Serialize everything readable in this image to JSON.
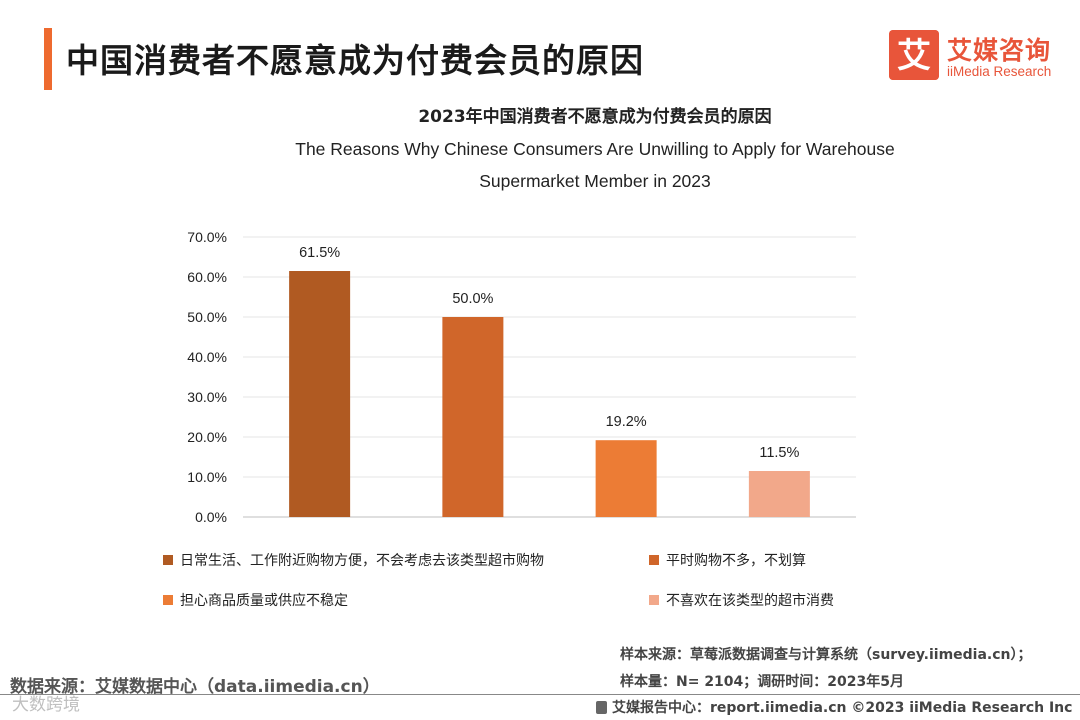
{
  "header": {
    "title": "中国消费者不愿意成为付费会员的原因"
  },
  "logo": {
    "name_cn": "艾媒咨询",
    "name_en": "iiMedia Research",
    "mark_glyph": "艾"
  },
  "chart_data": {
    "type": "bar",
    "title": "2023年中国消费者不愿意成为付费会员的原因",
    "subtitle_lines": [
      "The Reasons Why Chinese Consumers Are Unwilling to Apply for Warehouse",
      "Supermarket Member in 2023"
    ],
    "categories": [
      "日常生活、工作附近购物方便，不会考虑去该类型超市购物",
      "平时购物不多，不划算",
      "担心商品质量或供应不稳定",
      "不喜欢在该类型的超市消费"
    ],
    "values": [
      61.5,
      50.0,
      19.2,
      11.5
    ],
    "value_labels": [
      "61.5%",
      "50.0%",
      "19.2%",
      "11.5%"
    ],
    "colors": [
      "#b05a22",
      "#d0662a",
      "#ec7c35",
      "#f2a88a"
    ],
    "ylim": [
      0,
      70
    ],
    "yticks": [
      "0.0%",
      "10.0%",
      "20.0%",
      "30.0%",
      "40.0%",
      "50.0%",
      "60.0%",
      "70.0%"
    ],
    "grid": true,
    "legend_position": "bottom"
  },
  "notes": {
    "sample_source": "样本来源：草莓派数据调查与计算系统（survey.iimedia.cn）；",
    "sample_size": "样本量：N= 2104；调研时间：2023年5月",
    "data_source": "数据来源：艾媒数据中心（data.iimedia.cn）",
    "footer": "艾媒报告中心：report.iimedia.cn ©2023  iiMedia Research  Inc",
    "watermark": "大数跨境"
  }
}
